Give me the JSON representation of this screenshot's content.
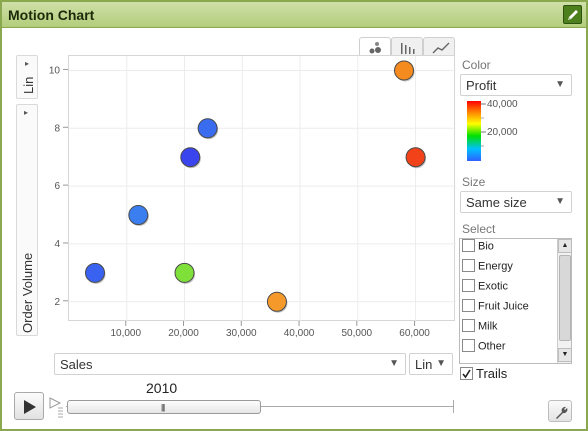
{
  "header": {
    "title": "Motion Chart",
    "edit_icon": "pencil-icon"
  },
  "view_tabs": [
    {
      "name": "bubble",
      "icon": "bubble-chart-icon",
      "active": true
    },
    {
      "name": "bar",
      "icon": "bar-chart-icon",
      "active": false
    },
    {
      "name": "line",
      "icon": "line-chart-icon",
      "active": false
    }
  ],
  "y_axis": {
    "label": "Order Volume",
    "scale": "Lin"
  },
  "x_axis": {
    "label": "Sales",
    "scale": "Lin"
  },
  "color": {
    "section": "Color",
    "value": "Profit",
    "scale_max": "40,000",
    "scale_mid": "20,000"
  },
  "size": {
    "section": "Size",
    "value": "Same size"
  },
  "select": {
    "section": "Select",
    "items": [
      "Bio",
      "Energy",
      "Exotic",
      "Fruit Juice",
      "Milk",
      "Other"
    ]
  },
  "trails": {
    "label": "Trails",
    "checked": true
  },
  "timeline": {
    "year": "2010"
  },
  "chart_data": {
    "type": "scatter",
    "title": "",
    "xlabel": "Sales",
    "ylabel": "Order Volume",
    "xlim": [
      0,
      67000
    ],
    "ylim": [
      1.3,
      10.5
    ],
    "x_ticks": [
      "10,000",
      "20,000",
      "30,000",
      "40,000",
      "50,000",
      "60,000"
    ],
    "y_ticks": [
      "2",
      "4",
      "6",
      "8",
      "10"
    ],
    "points": [
      {
        "x": 4500,
        "y": 3,
        "color": "#3a62f0"
      },
      {
        "x": 12000,
        "y": 5,
        "color": "#3a7ef0"
      },
      {
        "x": 20000,
        "y": 3,
        "color": "#7fe03a"
      },
      {
        "x": 21000,
        "y": 7,
        "color": "#3a45ee"
      },
      {
        "x": 24000,
        "y": 8,
        "color": "#3a6cf0"
      },
      {
        "x": 36000,
        "y": 2,
        "color": "#f59a2a"
      },
      {
        "x": 58000,
        "y": 10,
        "color": "#f58a1e"
      },
      {
        "x": 60000,
        "y": 7,
        "color": "#f2421a"
      }
    ]
  }
}
